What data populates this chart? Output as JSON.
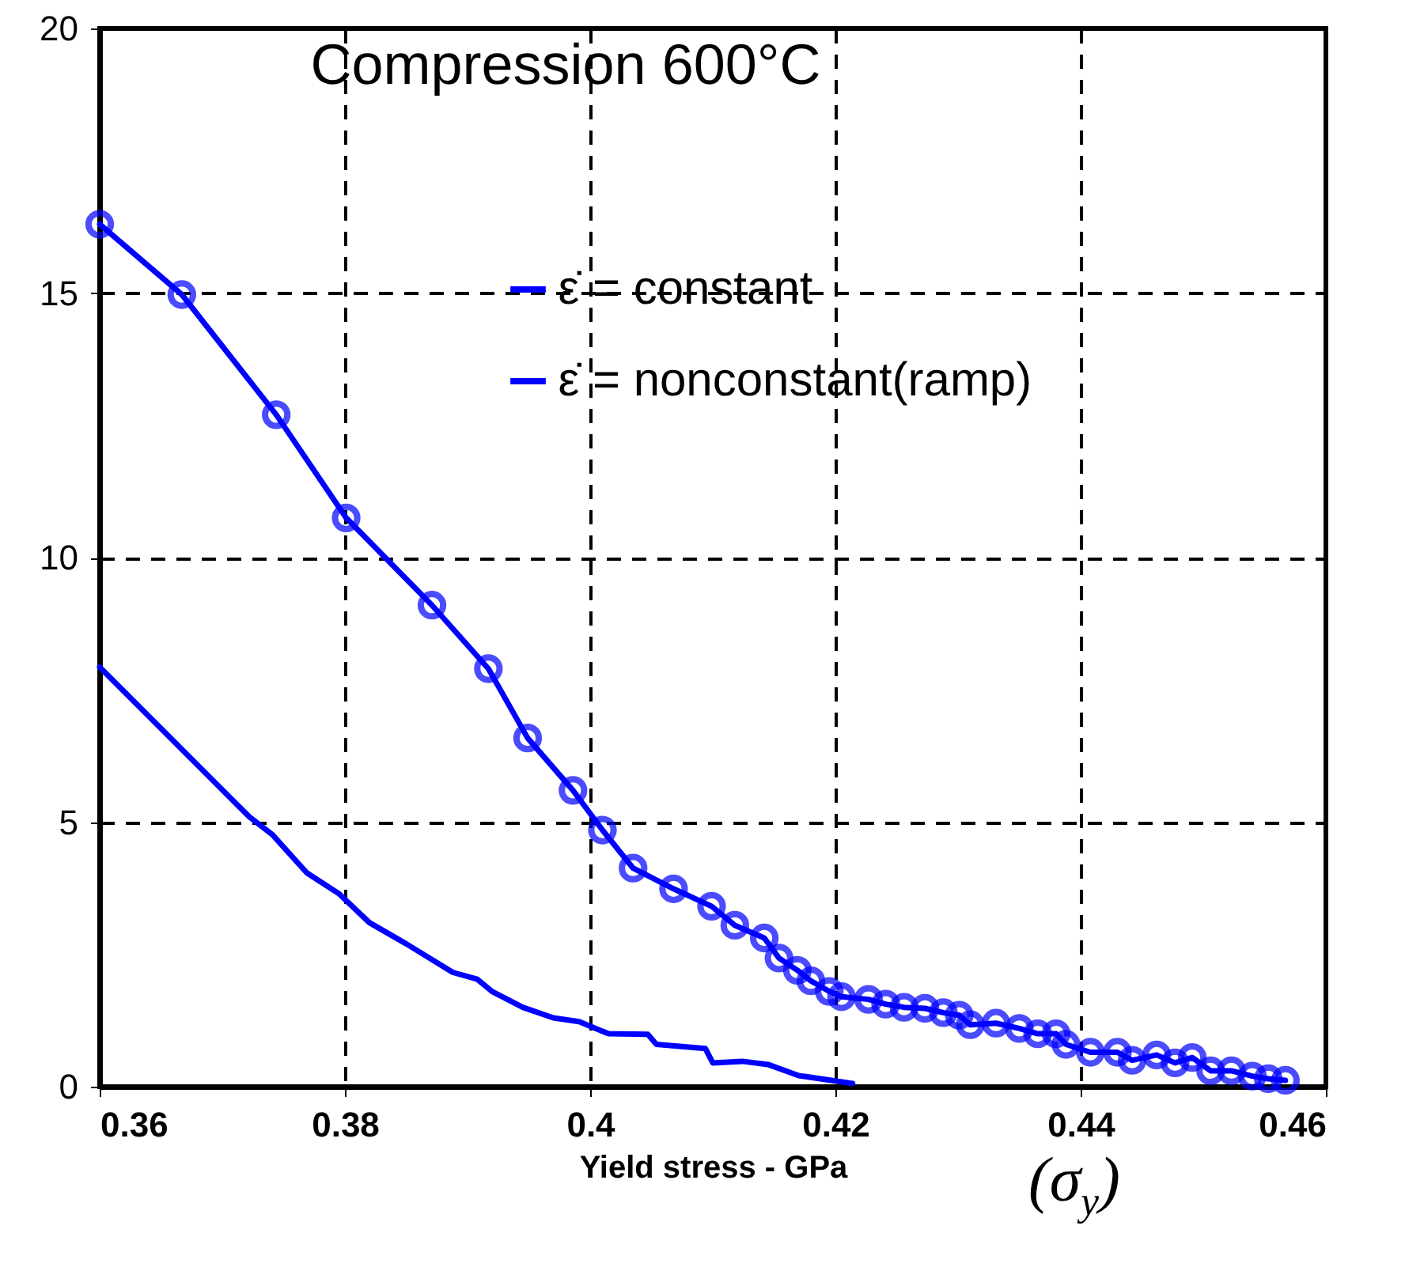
{
  "chart_data": {
    "type": "line",
    "title": "Compression 600°C",
    "xlabel": "Yield stress - GPa",
    "annotations": [
      "(σ$_{y}$)"
    ],
    "xlim": [
      0.36,
      0.46
    ],
    "xticks": [
      0.36,
      0.38,
      0.4,
      0.42,
      0.44,
      0.46
    ],
    "ylim": [
      0,
      20
    ],
    "yticks": [
      0,
      5,
      10,
      15,
      20
    ],
    "grid": true,
    "legend": "top right",
    "line_style": "solid",
    "series": [
      {
        "name": "ε̇ = constant",
        "color": "#0000ff",
        "marker": "circle",
        "x": [
          0.36,
          0.3667,
          0.3744,
          0.3801,
          0.3871,
          0.3917,
          0.3949,
          0.3986,
          0.401,
          0.4035,
          0.4068,
          0.4099,
          0.4118,
          0.4142,
          0.4154,
          0.4169,
          0.418,
          0.4195,
          0.4205,
          0.4227,
          0.4241,
          0.4256,
          0.4273,
          0.4288,
          0.4301,
          0.431,
          0.4331,
          0.435,
          0.4365,
          0.438,
          0.4388,
          0.4408,
          0.443,
          0.4442,
          0.4462,
          0.4477,
          0.4491,
          0.4506,
          0.4523,
          0.454,
          0.4553,
          0.4567
        ],
        "values": [
          16.3,
          14.97,
          12.7,
          10.75,
          9.1,
          7.9,
          6.59,
          5.6,
          4.85,
          4.13,
          3.74,
          3.41,
          3.05,
          2.81,
          2.43,
          2.2,
          2.0,
          1.8,
          1.7,
          1.65,
          1.56,
          1.5,
          1.48,
          1.4,
          1.35,
          1.17,
          1.2,
          1.1,
          1.0,
          1.0,
          0.8,
          0.65,
          0.65,
          0.5,
          0.6,
          0.45,
          0.55,
          0.3,
          0.3,
          0.2,
          0.15,
          0.12
        ]
      },
      {
        "name": "ε̇ = nonconstant(ramp)",
        "color": "#0000ff",
        "marker": "none",
        "x": [
          0.36,
          0.3722,
          0.3741,
          0.3769,
          0.3795,
          0.382,
          0.385,
          0.3888,
          0.3908,
          0.392,
          0.3945,
          0.397,
          0.3991,
          0.4015,
          0.4047,
          0.4054,
          0.4094,
          0.41,
          0.4124,
          0.4145,
          0.417,
          0.4214
        ],
        "values": [
          7.93,
          5.1,
          4.76,
          4.04,
          3.65,
          3.1,
          2.7,
          2.16,
          2.03,
          1.8,
          1.5,
          1.3,
          1.23,
          1.0,
          0.99,
          0.8,
          0.72,
          0.45,
          0.48,
          0.42,
          0.21,
          0.06
        ]
      }
    ]
  }
}
